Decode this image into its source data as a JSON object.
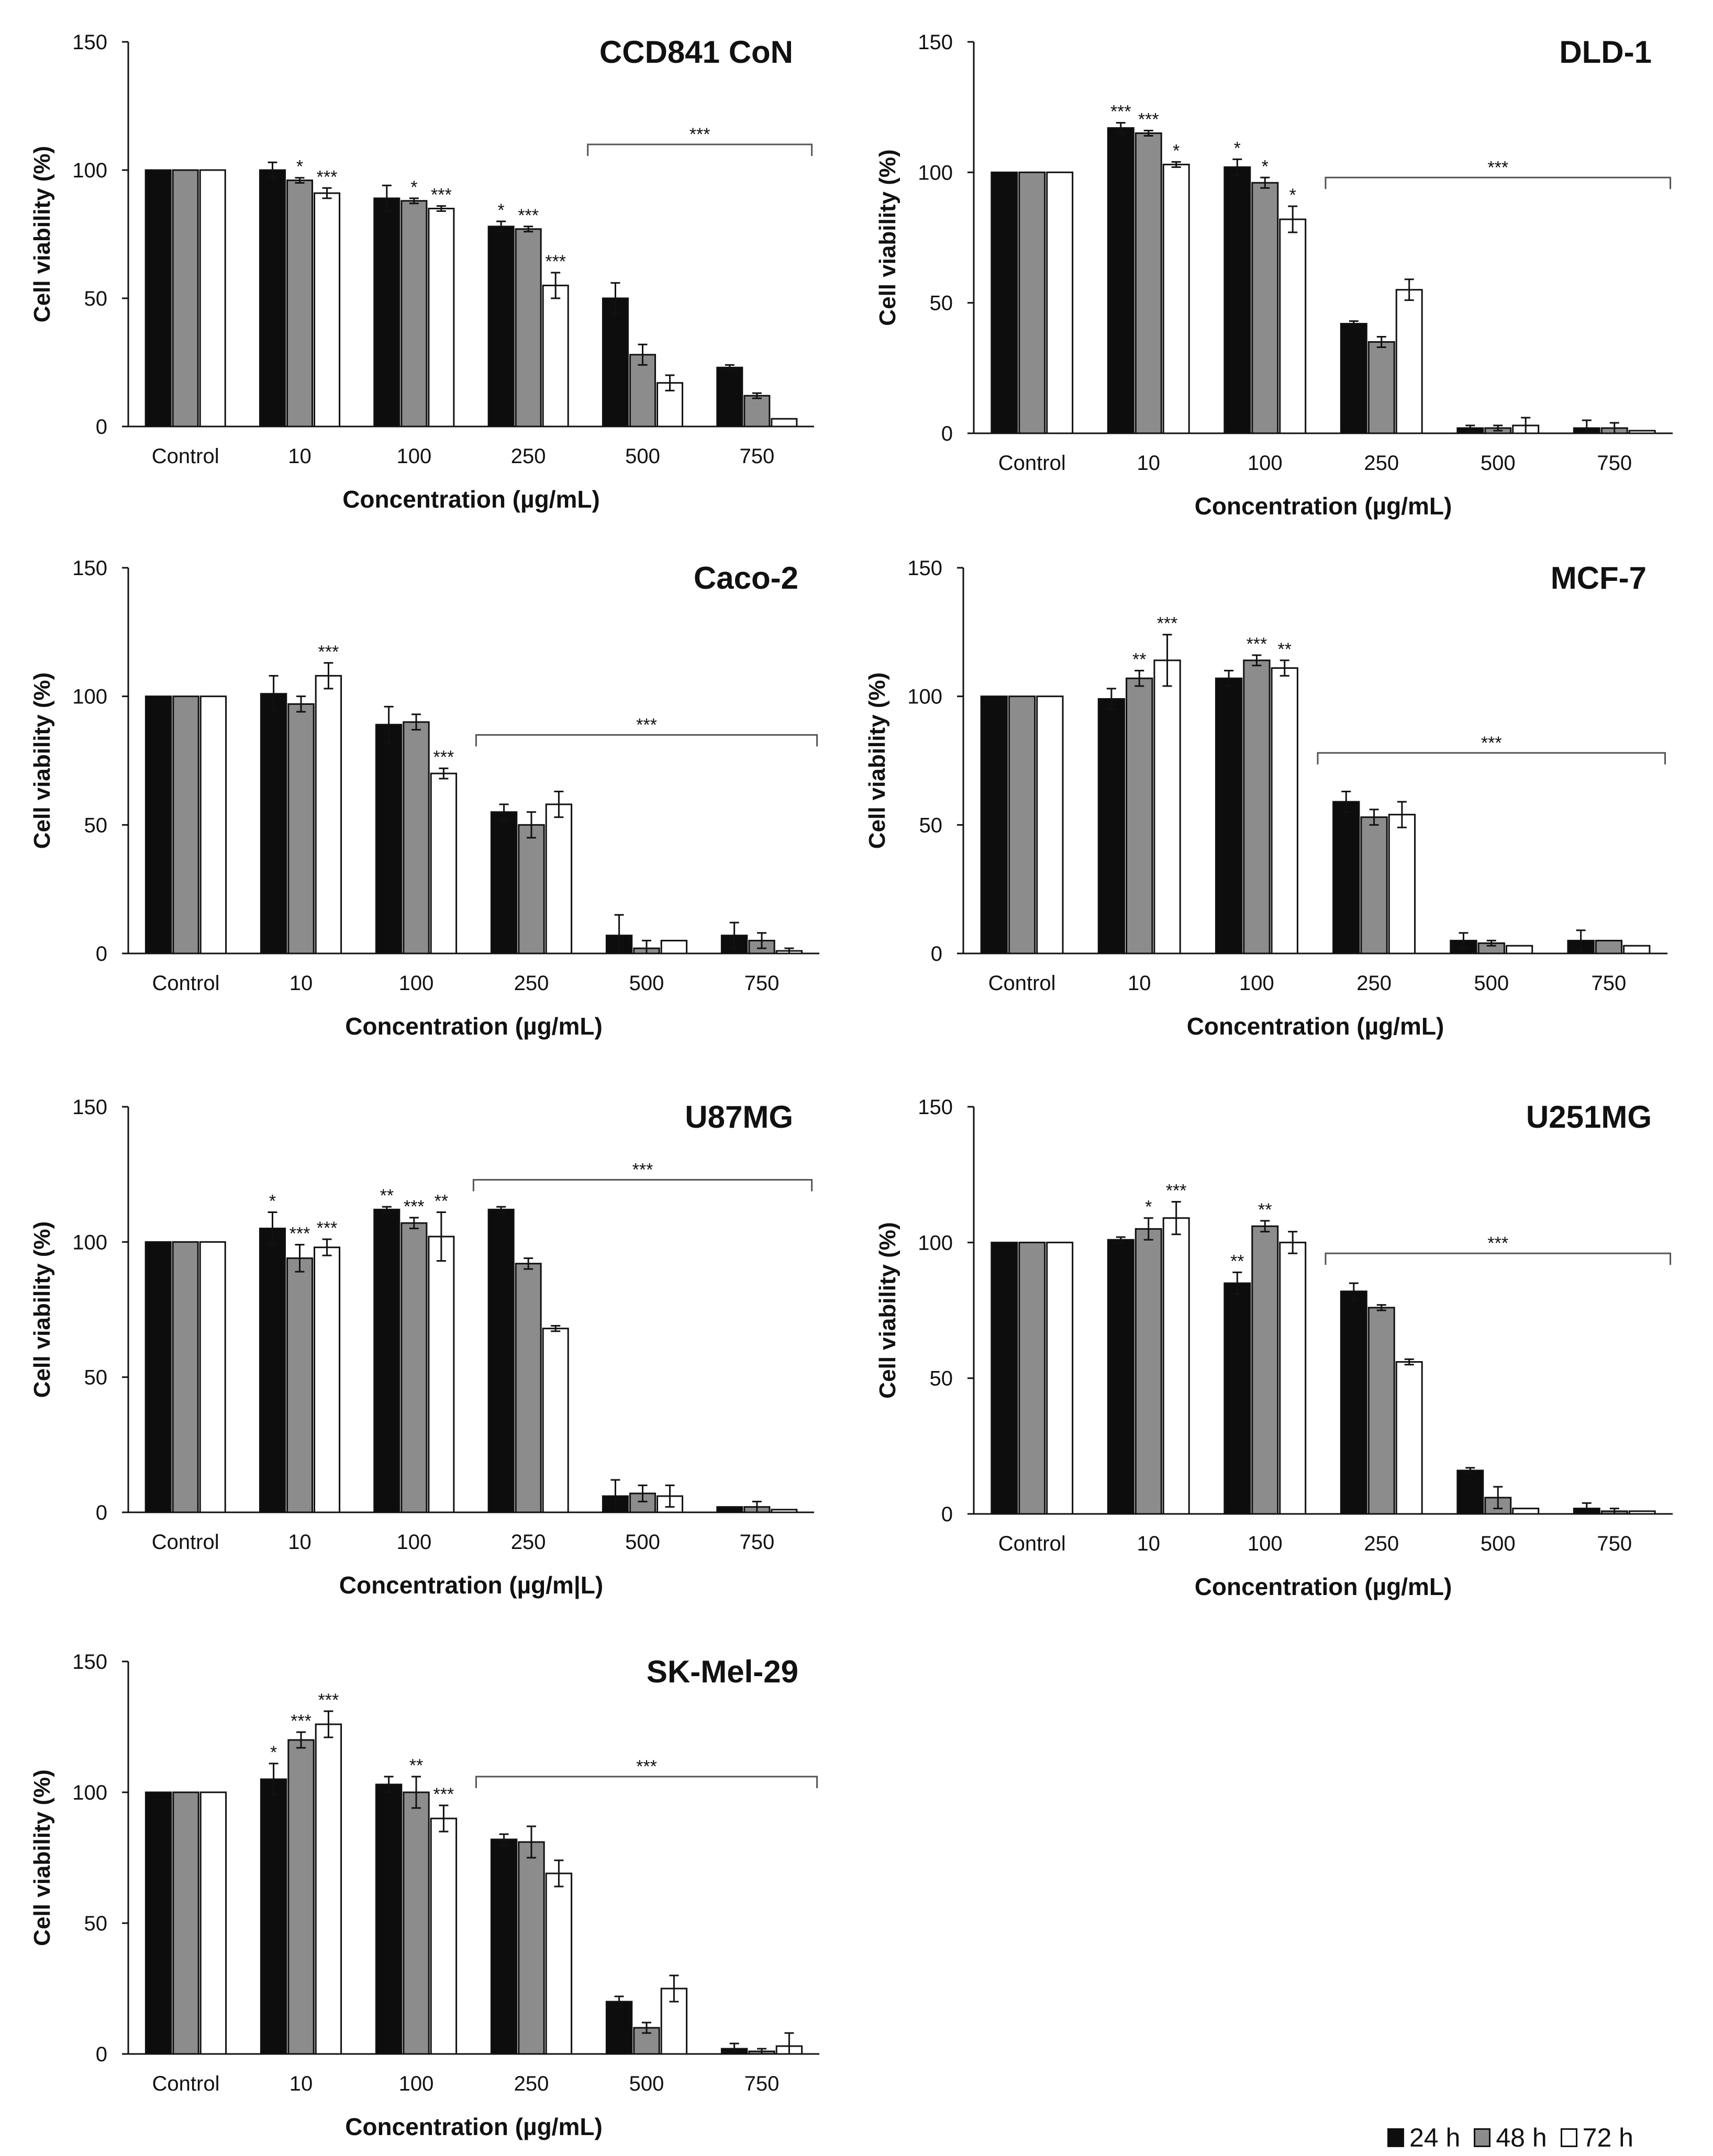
{
  "colors": {
    "24h": "#0d0d0d",
    "48h": "#8c8c8c",
    "72h": "#ffffff",
    "axis": "#111111",
    "bracket": "#555555"
  },
  "shared": {
    "ylabel": "Cell viability (%)",
    "xlabel": "Concentration (µg/mL)",
    "ylim": [
      0,
      150
    ],
    "yticks": [
      "0",
      "50",
      "100",
      "150"
    ],
    "categories": [
      "Control",
      "10",
      "100",
      "250",
      "500",
      "750"
    ]
  },
  "legend": [
    {
      "key": "24h",
      "label": "24 h"
    },
    {
      "key": "48h",
      "label": "48 h"
    },
    {
      "key": "72h",
      "label": "72 h"
    }
  ],
  "chart_data": [
    {
      "type": "bar",
      "title": "CCD841 CoN",
      "categories": [
        "Control",
        "10",
        "100",
        "250",
        "500",
        "750"
      ],
      "xlabel": "Concentration (µg/mL)",
      "ylabel": "Cell viability (%)",
      "ylim": [
        0,
        150
      ],
      "series": [
        {
          "name": "24 h",
          "values": [
            100,
            100,
            89,
            78,
            50,
            23
          ],
          "errors": [
            0,
            3,
            5,
            2,
            6,
            1
          ]
        },
        {
          "name": "48 h",
          "values": [
            100,
            96,
            88,
            77,
            28,
            12
          ],
          "errors": [
            0,
            1,
            1,
            1,
            4,
            1
          ]
        },
        {
          "name": "72 h",
          "values": [
            100,
            91,
            85,
            55,
            17,
            3
          ],
          "errors": [
            0,
            2,
            1,
            5,
            3,
            0
          ]
        }
      ],
      "significance": [
        {
          "category": "10",
          "series": "48 h",
          "label": "*"
        },
        {
          "category": "10",
          "series": "72 h",
          "label": "***"
        },
        {
          "category": "100",
          "series": "48 h",
          "label": "*"
        },
        {
          "category": "100",
          "series": "72 h",
          "label": "***"
        },
        {
          "category": "250",
          "series": "24 h",
          "label": "*"
        },
        {
          "category": "250",
          "series": "48 h",
          "label": "***"
        },
        {
          "category": "250",
          "series": "72 h",
          "label": "***"
        }
      ],
      "bracket": {
        "from": "500",
        "to": "750",
        "label": "***",
        "y": 110
      }
    },
    {
      "type": "bar",
      "title": "DLD-1",
      "categories": [
        "Control",
        "10",
        "100",
        "250",
        "500",
        "750"
      ],
      "xlabel": "Concentration (µg/mL)",
      "ylabel": "Cell viability (%)",
      "ylim": [
        0,
        150
      ],
      "series": [
        {
          "name": "24 h",
          "values": [
            100,
            117,
            102,
            42,
            2,
            2
          ],
          "errors": [
            0,
            2,
            3,
            1,
            1,
            3
          ]
        },
        {
          "name": "48 h",
          "values": [
            100,
            115,
            96,
            35,
            2,
            2
          ],
          "errors": [
            0,
            1,
            2,
            2,
            1,
            2
          ]
        },
        {
          "name": "72 h",
          "values": [
            100,
            103,
            82,
            55,
            3,
            1
          ],
          "errors": [
            0,
            1,
            5,
            4,
            3,
            0
          ]
        }
      ],
      "significance": [
        {
          "category": "10",
          "series": "24 h",
          "label": "***"
        },
        {
          "category": "10",
          "series": "48 h",
          "label": "***"
        },
        {
          "category": "10",
          "series": "72 h",
          "label": "*"
        },
        {
          "category": "100",
          "series": "24 h",
          "label": "*"
        },
        {
          "category": "100",
          "series": "48 h",
          "label": "*"
        },
        {
          "category": "100",
          "series": "72 h",
          "label": "*"
        }
      ],
      "bracket": {
        "from": "250",
        "to": "750",
        "label": "***",
        "y": 98
      }
    },
    {
      "type": "bar",
      "title": "Caco-2",
      "categories": [
        "Control",
        "10",
        "100",
        "250",
        "500",
        "750"
      ],
      "xlabel": "Concentration (µg/mL)",
      "ylabel": "Cell viability (%)",
      "ylim": [
        0,
        150
      ],
      "series": [
        {
          "name": "24 h",
          "values": [
            100,
            101,
            89,
            55,
            7,
            7
          ],
          "errors": [
            0,
            7,
            7,
            3,
            8,
            5
          ]
        },
        {
          "name": "48 h",
          "values": [
            100,
            97,
            90,
            50,
            2,
            5
          ],
          "errors": [
            0,
            3,
            3,
            5,
            3,
            3
          ]
        },
        {
          "name": "72 h",
          "values": [
            100,
            108,
            70,
            58,
            5,
            1
          ],
          "errors": [
            0,
            5,
            2,
            5,
            0,
            1
          ]
        }
      ],
      "significance": [
        {
          "category": "10",
          "series": "72 h",
          "label": "***"
        },
        {
          "category": "100",
          "series": "72 h",
          "label": "***"
        }
      ],
      "bracket": {
        "from": "250",
        "to": "750",
        "label": "***",
        "y": 85
      }
    },
    {
      "type": "bar",
      "title": "MCF-7",
      "categories": [
        "Control",
        "10",
        "100",
        "250",
        "500",
        "750"
      ],
      "xlabel": "Concentration (µg/mL)",
      "ylabel": "Cell viability (%)",
      "ylim": [
        0,
        150
      ],
      "series": [
        {
          "name": "24 h",
          "values": [
            100,
            99,
            107,
            59,
            5,
            5
          ],
          "errors": [
            0,
            4,
            3,
            4,
            3,
            4
          ]
        },
        {
          "name": "48 h",
          "values": [
            100,
            107,
            114,
            53,
            4,
            5
          ],
          "errors": [
            0,
            3,
            2,
            3,
            1,
            0
          ]
        },
        {
          "name": "72 h",
          "values": [
            100,
            114,
            111,
            54,
            3,
            3
          ],
          "errors": [
            0,
            10,
            3,
            5,
            0,
            0
          ]
        }
      ],
      "significance": [
        {
          "category": "10",
          "series": "48 h",
          "label": "**"
        },
        {
          "category": "10",
          "series": "72 h",
          "label": "***"
        },
        {
          "category": "100",
          "series": "48 h",
          "label": "***"
        },
        {
          "category": "100",
          "series": "72 h",
          "label": "**"
        }
      ],
      "bracket": {
        "from": "250",
        "to": "750",
        "label": "***",
        "y": 78
      }
    },
    {
      "type": "bar",
      "title": "U87MG",
      "categories": [
        "Control",
        "10",
        "100",
        "250",
        "500",
        "750"
      ],
      "xlabel": "Concentration (µg/m|L)",
      "ylabel": "Cell viability (%)",
      "ylim": [
        0,
        150
      ],
      "series": [
        {
          "name": "24 h",
          "values": [
            100,
            105,
            112,
            112,
            6,
            2
          ],
          "errors": [
            0,
            6,
            1,
            1,
            6,
            0
          ]
        },
        {
          "name": "48 h",
          "values": [
            100,
            94,
            107,
            92,
            7,
            2
          ],
          "errors": [
            0,
            5,
            2,
            2,
            3,
            2
          ]
        },
        {
          "name": "72 h",
          "values": [
            100,
            98,
            102,
            68,
            6,
            1
          ],
          "errors": [
            0,
            3,
            9,
            1,
            4,
            0
          ]
        }
      ],
      "significance": [
        {
          "category": "10",
          "series": "24 h",
          "label": "*"
        },
        {
          "category": "10",
          "series": "48 h",
          "label": "***"
        },
        {
          "category": "10",
          "series": "72 h",
          "label": "***"
        },
        {
          "category": "100",
          "series": "24 h",
          "label": "**"
        },
        {
          "category": "100",
          "series": "48 h",
          "label": "***"
        },
        {
          "category": "100",
          "series": "72 h",
          "label": "**"
        }
      ],
      "bracket": {
        "from": "250",
        "to": "750",
        "label": "***",
        "y": 123
      }
    },
    {
      "type": "bar",
      "title": "U251MG",
      "categories": [
        "Control",
        "10",
        "100",
        "250",
        "500",
        "750"
      ],
      "xlabel": "Concentration (µg/mL)",
      "ylabel": "Cell viability (%)",
      "ylim": [
        0,
        150
      ],
      "series": [
        {
          "name": "24 h",
          "values": [
            100,
            101,
            85,
            82,
            16,
            2
          ],
          "errors": [
            0,
            1,
            4,
            3,
            1,
            2
          ]
        },
        {
          "name": "48 h",
          "values": [
            100,
            105,
            106,
            76,
            6,
            1
          ],
          "errors": [
            0,
            4,
            2,
            1,
            4,
            1
          ]
        },
        {
          "name": "72 h",
          "values": [
            100,
            109,
            100,
            56,
            2,
            1
          ],
          "errors": [
            0,
            6,
            4,
            1,
            0,
            0
          ]
        }
      ],
      "significance": [
        {
          "category": "10",
          "series": "48 h",
          "label": "*"
        },
        {
          "category": "10",
          "series": "72 h",
          "label": "***"
        },
        {
          "category": "100",
          "series": "24 h",
          "label": "**"
        },
        {
          "category": "100",
          "series": "48 h",
          "label": "**"
        }
      ],
      "bracket": {
        "from": "250",
        "to": "750",
        "label": "***",
        "y": 96
      }
    },
    {
      "type": "bar",
      "title": "SK-Mel-29",
      "categories": [
        "Control",
        "10",
        "100",
        "250",
        "500",
        "750"
      ],
      "xlabel": "Concentration (µg/mL)",
      "ylabel": "Cell viability (%)",
      "ylim": [
        0,
        150
      ],
      "series": [
        {
          "name": "24 h",
          "values": [
            100,
            105,
            103,
            82,
            20,
            2
          ],
          "errors": [
            0,
            6,
            3,
            2,
            2,
            2
          ]
        },
        {
          "name": "48 h",
          "values": [
            100,
            120,
            100,
            81,
            10,
            1
          ],
          "errors": [
            0,
            3,
            6,
            6,
            2,
            1
          ]
        },
        {
          "name": "72 h",
          "values": [
            100,
            126,
            90,
            69,
            25,
            3
          ],
          "errors": [
            0,
            5,
            5,
            5,
            5,
            5
          ]
        }
      ],
      "significance": [
        {
          "category": "10",
          "series": "24 h",
          "label": "*"
        },
        {
          "category": "10",
          "series": "48 h",
          "label": "***"
        },
        {
          "category": "10",
          "series": "72 h",
          "label": "***"
        },
        {
          "category": "100",
          "series": "48 h",
          "label": "**"
        },
        {
          "category": "100",
          "series": "72 h",
          "label": "***"
        }
      ],
      "bracket": {
        "from": "250",
        "to": "750",
        "label": "***",
        "y": 106
      }
    }
  ]
}
